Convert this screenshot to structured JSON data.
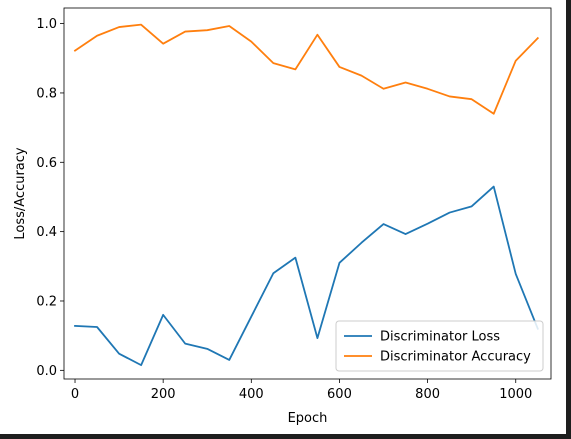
{
  "chart_data": {
    "type": "line",
    "title": "",
    "xlabel": "Epoch",
    "ylabel": "Loss/Accuracy",
    "xlim": [
      -25,
      1080
    ],
    "ylim": [
      -0.025,
      1.045
    ],
    "xticks": [
      0,
      200,
      400,
      600,
      800,
      1000
    ],
    "yticks": [
      0.0,
      0.2,
      0.4,
      0.6,
      0.8,
      1.0
    ],
    "xtick_labels": [
      "0",
      "200",
      "400",
      "600",
      "800",
      "1000"
    ],
    "ytick_labels": [
      "0.0",
      "0.2",
      "0.4",
      "0.6",
      "0.8",
      "1.0"
    ],
    "grid": false,
    "legend_position": "lower-right",
    "x": [
      0,
      50,
      100,
      150,
      200,
      250,
      300,
      350,
      400,
      450,
      500,
      550,
      600,
      650,
      700,
      750,
      800,
      850,
      900,
      950,
      1000,
      1050
    ],
    "series": [
      {
        "name": "Discriminator Loss",
        "color": "#1f77b4",
        "values": [
          0.128,
          0.125,
          0.048,
          0.015,
          0.16,
          0.077,
          0.062,
          0.03,
          0.155,
          0.28,
          0.325,
          0.093,
          0.31,
          0.368,
          0.422,
          0.393,
          0.423,
          0.455,
          0.473,
          0.53,
          0.278,
          0.12
        ]
      },
      {
        "name": "Discriminator Accuracy",
        "color": "#ff7f0e",
        "values": [
          0.922,
          0.965,
          0.99,
          0.997,
          0.942,
          0.977,
          0.981,
          0.993,
          0.948,
          0.886,
          0.868,
          0.968,
          0.875,
          0.85,
          0.812,
          0.83,
          0.812,
          0.79,
          0.782,
          0.74,
          0.893,
          0.958
        ]
      }
    ]
  }
}
